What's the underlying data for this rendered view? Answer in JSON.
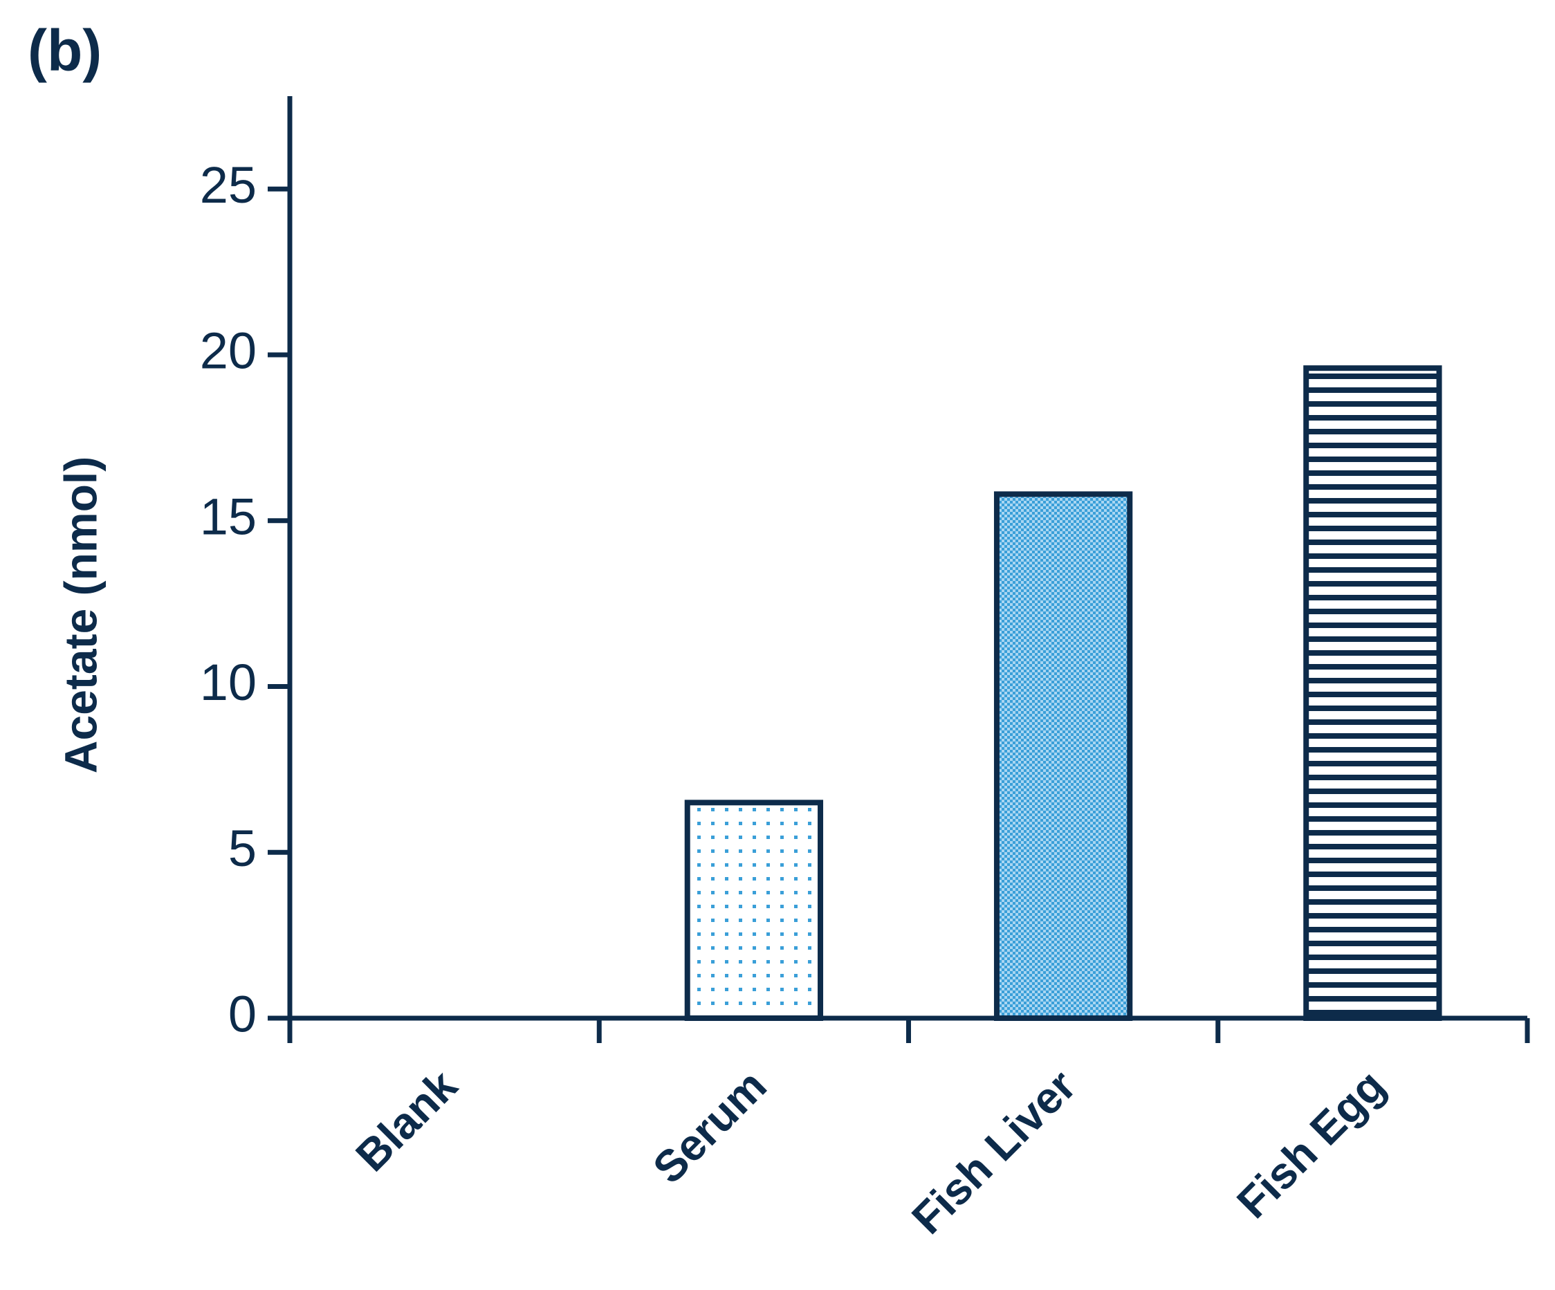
{
  "chart_data": {
    "type": "bar",
    "panel_label": "(b)",
    "ylabel": "Acetate (nmol)",
    "categories": [
      "Blank",
      "Serum",
      "Fish Liver",
      "Fish Egg"
    ],
    "values": [
      0,
      6.5,
      15.8,
      19.6
    ],
    "patterns": [
      "none",
      "dots",
      "checker",
      "stripes"
    ],
    "color": "#0d2b4a",
    "pattern_color": "#3a9fd8",
    "ylim": [
      0,
      27.8
    ],
    "yticks": [
      0,
      5,
      10,
      15,
      20,
      25
    ],
    "grid": false
  }
}
